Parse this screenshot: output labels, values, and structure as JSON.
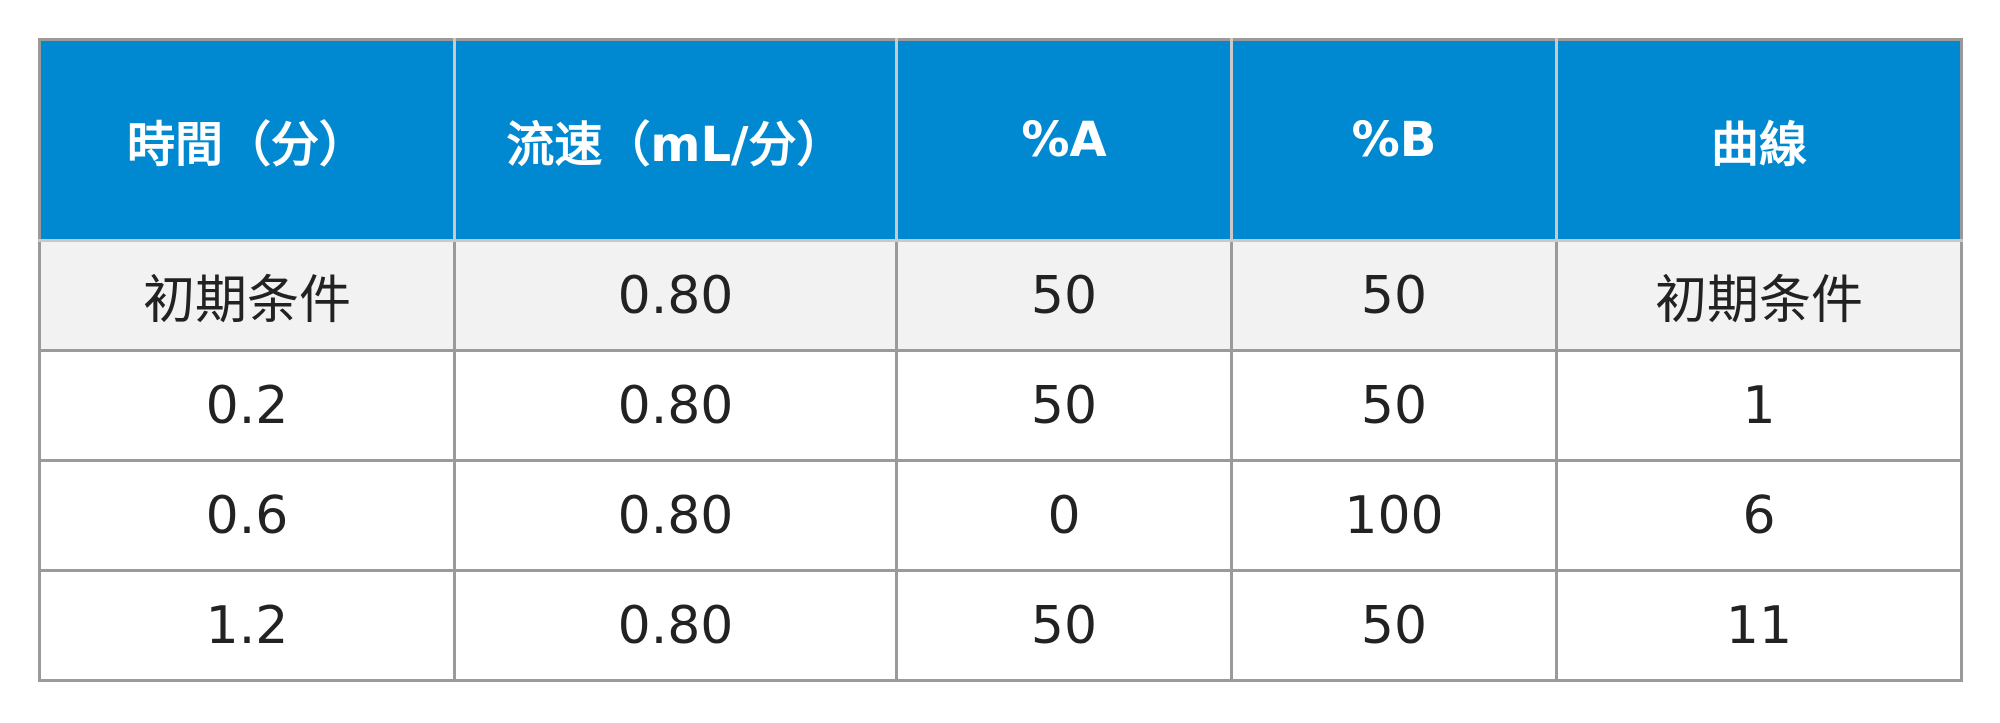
{
  "table": {
    "header": [
      "時間（分）",
      "流速（mL/分）",
      "%A",
      "%B",
      "曲線"
    ],
    "rows": [
      [
        "初期条件",
        "0.80",
        "50",
        "50",
        "初期条件"
      ],
      [
        "0.2",
        "0.80",
        "50",
        "50",
        "1"
      ],
      [
        "0.6",
        "0.80",
        "0",
        "100",
        "6"
      ],
      [
        "1.2",
        "0.80",
        "50",
        "50",
        "11"
      ]
    ]
  }
}
